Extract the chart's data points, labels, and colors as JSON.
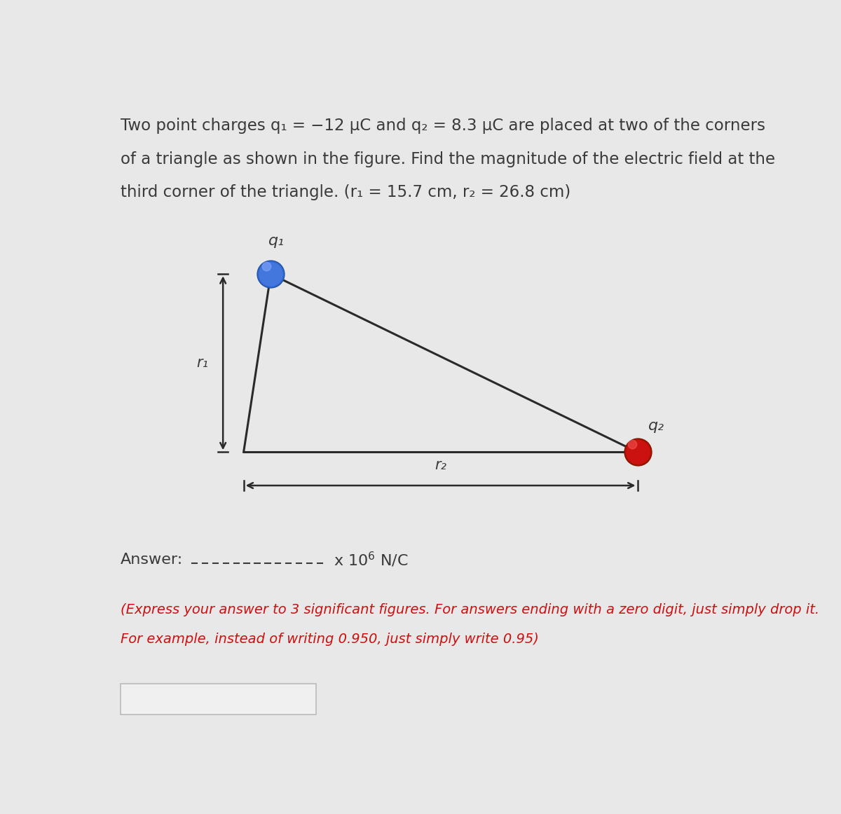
{
  "bg_color": "#e8e8e8",
  "fig_width": 12.0,
  "fig_height": 11.62,
  "problem_text_line1": "Two point charges q₁ = −12 μC and q₂ = 8.3 μC are placed at two of the corners",
  "problem_text_line2": "of a triangle as shown in the figure. Find the magnitude of the electric field at the",
  "problem_text_line3": "third corner of the triangle. (r₁ = 15.7 cm, r₂ = 26.8 cm)",
  "q1_label": "q₁",
  "q2_label": "q₂",
  "r1_label": "r₁",
  "r2_label": "r₂",
  "q1_color": "#4a7fd4",
  "q2_color": "#cc1111",
  "triangle_color": "#2a2a2a",
  "arrow_dark_color": "#2a2a2a",
  "text_color": "#3a3a3a",
  "instruction_color": "#cc1111",
  "answer_text_color": "#3a3a3a",
  "input_box_color": "#f0f0f0",
  "input_box_edge_color": "#bbbbbb",
  "panel_color": "#f0f0f0",
  "BL": [
    2.55,
    5.05
  ],
  "TL": [
    3.05,
    8.35
  ],
  "BR": [
    9.8,
    5.05
  ]
}
